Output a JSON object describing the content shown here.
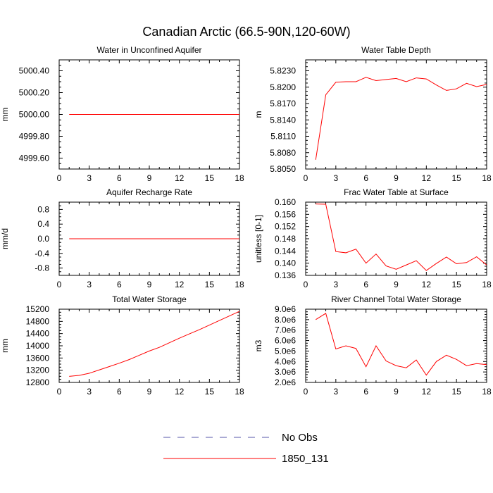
{
  "figure": {
    "title": "Canadian Arctic (66.5-90N,120-60W)",
    "legend": {
      "placement": "bottom-center",
      "items": [
        {
          "label": "No Obs",
          "color": "#5555aa",
          "style": "dashed"
        },
        {
          "label": "1850_131",
          "color": "#ff0000",
          "style": "solid"
        }
      ]
    }
  },
  "chart_data": [
    {
      "type": "line",
      "title": "Water in Unconfined Aquifer",
      "ylabel": "mm",
      "xlim": [
        0,
        18
      ],
      "ylim": [
        4999.5,
        5000.5
      ],
      "xticks": [
        0,
        3,
        6,
        9,
        12,
        15,
        18
      ],
      "xtick_labels": [
        "0",
        "3",
        "6",
        "9",
        "12",
        "15",
        "18"
      ],
      "yticks": [
        4999.6,
        4999.8,
        5000.0,
        5000.2,
        5000.4
      ],
      "ytick_labels": [
        "4999.60",
        "4999.80",
        "5000.00",
        "5000.20",
        "5000.40"
      ],
      "series": [
        {
          "color": "#ff0000",
          "x": [
            1,
            18
          ],
          "y": [
            5000.0,
            5000.0
          ]
        }
      ]
    },
    {
      "type": "line",
      "title": "Water Table Depth",
      "ylabel": "m",
      "xlim": [
        0,
        18
      ],
      "ylim": [
        5.805,
        5.825
      ],
      "xticks": [
        0,
        3,
        6,
        9,
        12,
        15,
        18
      ],
      "xtick_labels": [
        "0",
        "3",
        "6",
        "9",
        "12",
        "15",
        "18"
      ],
      "yticks": [
        5.805,
        5.808,
        5.811,
        5.814,
        5.817,
        5.82,
        5.823
      ],
      "ytick_labels": [
        "5.8050",
        "5.8080",
        "5.8110",
        "5.8140",
        "5.8170",
        "5.8200",
        "5.8230"
      ],
      "series": [
        {
          "color": "#ff0000",
          "x": [
            1,
            2,
            3,
            4,
            5,
            6,
            7,
            8,
            9,
            10,
            11,
            12,
            13,
            14,
            15,
            16,
            17,
            18
          ],
          "y": [
            5.8067,
            5.8186,
            5.8209,
            5.821,
            5.821,
            5.8218,
            5.8212,
            5.8214,
            5.8216,
            5.821,
            5.8217,
            5.8215,
            5.8204,
            5.8194,
            5.8197,
            5.8207,
            5.8201,
            5.8205
          ]
        }
      ]
    },
    {
      "type": "line",
      "title": "Aquifer Recharge Rate",
      "ylabel": "mm/d",
      "xlim": [
        0,
        18
      ],
      "ylim": [
        -1.0,
        1.0
      ],
      "xticks": [
        0,
        3,
        6,
        9,
        12,
        15,
        18
      ],
      "xtick_labels": [
        "0",
        "3",
        "6",
        "9",
        "12",
        "15",
        "18"
      ],
      "yticks": [
        -0.8,
        -0.4,
        0.0,
        0.4,
        0.8
      ],
      "ytick_labels": [
        "-0.8",
        "-0.4",
        "0.0",
        "0.4",
        "0.8"
      ],
      "series": [
        {
          "color": "#ff0000",
          "x": [
            1,
            18
          ],
          "y": [
            0.0,
            0.0
          ]
        }
      ]
    },
    {
      "type": "line",
      "title": "Frac Water Table at Surface",
      "ylabel": "unitless [0-1]",
      "xlim": [
        0,
        18
      ],
      "ylim": [
        0.136,
        0.16
      ],
      "xticks": [
        0,
        3,
        6,
        9,
        12,
        15,
        18
      ],
      "xtick_labels": [
        "0",
        "3",
        "6",
        "9",
        "12",
        "15",
        "18"
      ],
      "yticks": [
        0.136,
        0.14,
        0.144,
        0.148,
        0.152,
        0.156,
        0.16
      ],
      "ytick_labels": [
        "0.136",
        "0.140",
        "0.144",
        "0.148",
        "0.152",
        "0.156",
        "0.160"
      ],
      "series": [
        {
          "color": "#ff0000",
          "x": [
            1,
            2,
            3,
            4,
            5,
            6,
            7,
            8,
            9,
            10,
            11,
            12,
            13,
            14,
            15,
            16,
            17,
            18
          ],
          "y": [
            0.1594,
            0.1593,
            0.1438,
            0.1434,
            0.1446,
            0.14,
            0.143,
            0.1391,
            0.138,
            0.1394,
            0.1408,
            0.1376,
            0.1399,
            0.142,
            0.1398,
            0.1402,
            0.1421,
            0.1394
          ]
        }
      ]
    },
    {
      "type": "line",
      "title": "Total Water Storage",
      "ylabel": "mm",
      "xlim": [
        0,
        18
      ],
      "ylim": [
        12800,
        15200
      ],
      "xticks": [
        0,
        3,
        6,
        9,
        12,
        15,
        18
      ],
      "xtick_labels": [
        "0",
        "3",
        "6",
        "9",
        "12",
        "15",
        "18"
      ],
      "yticks": [
        12800,
        13200,
        13600,
        14000,
        14400,
        14800,
        15200
      ],
      "ytick_labels": [
        "12800",
        "13200",
        "13600",
        "14000",
        "14400",
        "14800",
        "15200"
      ],
      "series": [
        {
          "color": "#ff0000",
          "x": [
            1,
            2,
            3,
            4,
            5,
            6,
            7,
            8,
            9,
            10,
            11,
            12,
            13,
            14,
            15,
            16,
            17,
            18
          ],
          "y": [
            13000,
            13030,
            13100,
            13210,
            13320,
            13430,
            13550,
            13690,
            13830,
            13950,
            14100,
            14250,
            14390,
            14530,
            14680,
            14830,
            14980,
            15130
          ]
        }
      ]
    },
    {
      "type": "line",
      "title": "River Channel Total Water Storage",
      "ylabel": "m3",
      "xlim": [
        0,
        18
      ],
      "ylim": [
        2000000,
        9000000
      ],
      "xticks": [
        0,
        3,
        6,
        9,
        12,
        15,
        18
      ],
      "xtick_labels": [
        "0",
        "3",
        "6",
        "9",
        "12",
        "15",
        "18"
      ],
      "yticks": [
        2000000,
        3000000,
        4000000,
        5000000,
        6000000,
        7000000,
        8000000,
        9000000
      ],
      "ytick_labels": [
        "2.0e6",
        "3.0e6",
        "4.0e6",
        "5.0e6",
        "6.0e6",
        "7.0e6",
        "8.0e6",
        "9.0e6"
      ],
      "series": [
        {
          "color": "#ff0000",
          "x": [
            1,
            2,
            3,
            4,
            5,
            6,
            7,
            8,
            9,
            10,
            11,
            12,
            13,
            14,
            15,
            16,
            17,
            18
          ],
          "y": [
            8000000,
            8600000,
            5200000,
            5500000,
            5250000,
            3500000,
            5500000,
            4050000,
            3600000,
            3400000,
            4150000,
            2700000,
            4000000,
            4600000,
            4200000,
            3600000,
            3800000,
            3700000
          ]
        }
      ]
    }
  ]
}
